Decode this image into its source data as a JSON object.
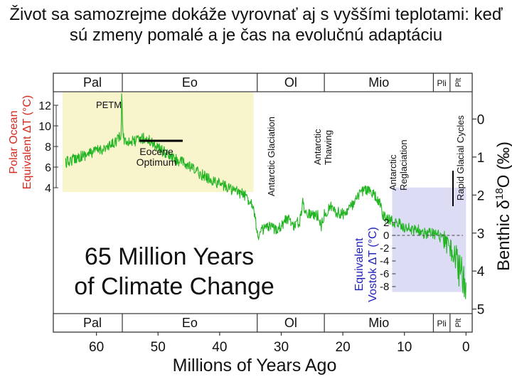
{
  "slide": {
    "title": "Život sa samozrejme dokáže vyrovnať aj s vyššími teplotami: keď sú zmeny pomalé a je čas na evolučnú adaptáciu"
  },
  "chart_data": {
    "type": "line",
    "title": "65 Million Years of Climate Change",
    "title_lines": [
      "65 Million Years",
      "of Climate Change"
    ],
    "xlabel": "Millions of Years Ago",
    "ylabel_right": "Benthic δ18O (‰)",
    "ylabel_right_parts": {
      "prefix": "Benthic δ",
      "superscript": "18",
      "suffix": "O (‰)"
    },
    "ylabel_left": [
      "Polar Ocean",
      "Equivalent ΔT (°C)"
    ],
    "ylabel_vostok": [
      "Equivalent",
      "Vostok ΔT (°C)"
    ],
    "xlim": [
      67,
      -1
    ],
    "ylim_right": [
      -0.7,
      5.1
    ],
    "x_ticks": [
      60,
      50,
      40,
      30,
      20,
      10,
      0
    ],
    "y_ticks_right": [
      0,
      1,
      2,
      3,
      4,
      5
    ],
    "y_ticks_left": [
      12,
      10,
      8,
      6,
      4
    ],
    "y_ticks_vostok": [
      2,
      0,
      -2,
      -4,
      -6,
      -8
    ],
    "colors": {
      "series": "#22b522",
      "polar_label": "#d42a1e",
      "polar_box": "#f8f4cc",
      "vostok_label": "#2222bb",
      "vostok_box": "#dcdcf4",
      "dashed": "#444444",
      "text": "#111111",
      "bar": "#000000"
    },
    "epochs": [
      {
        "label": "Pal",
        "start": 65.5,
        "end": 55.8
      },
      {
        "label": "Eo",
        "start": 55.8,
        "end": 33.9
      },
      {
        "label": "Ol",
        "start": 33.9,
        "end": 23.0
      },
      {
        "label": "Mio",
        "start": 23.0,
        "end": 5.3
      },
      {
        "label": "Pli",
        "start": 5.3,
        "end": 2.6
      },
      {
        "label": "Plt",
        "start": 2.6,
        "end": 0
      }
    ],
    "annotations": [
      {
        "text": "PETM",
        "x": 55.8,
        "y": -0.6
      },
      {
        "text": "Eocene Optimum",
        "lines": [
          "Eocene",
          "Optimum"
        ],
        "x_start": 53,
        "x_end": 46,
        "y": 1.15
      },
      {
        "text": "Antarctic Glaciation",
        "x": 33.7,
        "y_bottom": 2.6
      },
      {
        "text": "Antarctic Thawing",
        "x": 25.5,
        "y_bottom": 1.4
      },
      {
        "text": "Antarctic Reglaciation",
        "x": 13.5,
        "y_bottom": 1.9
      },
      {
        "text": "Rapid Glacial Cycles",
        "x": 0.8,
        "y_bottom": 2.5
      }
    ],
    "series": [
      {
        "name": "Benthic δ18O",
        "x": [
          65,
          63,
          61,
          59.5,
          58,
          57,
          56,
          55.9,
          55.7,
          55.5,
          54,
          52.5,
          51,
          50,
          48,
          46,
          44,
          42,
          40,
          38,
          36,
          34.5,
          34,
          33.6,
          33,
          32,
          31,
          30,
          29,
          28,
          27,
          26.5,
          26,
          25,
          24,
          23.5,
          23,
          22,
          21,
          20,
          19,
          18,
          17,
          16,
          15,
          14,
          13.5,
          13,
          12,
          11,
          10,
          9,
          8,
          7,
          6,
          5,
          4,
          3.5,
          3,
          2.5,
          2,
          1.5,
          1,
          0.5,
          0
        ],
        "y": [
          1.15,
          1.0,
          0.9,
          0.8,
          0.75,
          0.6,
          0.45,
          -0.6,
          0.3,
          0.55,
          0.6,
          0.5,
          0.6,
          0.75,
          1.0,
          1.15,
          1.35,
          1.55,
          1.7,
          1.85,
          2.0,
          2.25,
          2.9,
          3.1,
          2.9,
          2.85,
          2.9,
          2.8,
          2.6,
          2.8,
          2.7,
          2.2,
          2.45,
          2.5,
          2.55,
          2.8,
          2.5,
          2.3,
          2.45,
          2.5,
          2.35,
          2.2,
          1.9,
          1.85,
          2.0,
          2.2,
          2.55,
          2.6,
          2.7,
          2.75,
          2.85,
          2.9,
          2.9,
          3.0,
          3.0,
          3.05,
          3.05,
          3.2,
          3.3,
          3.45,
          3.5,
          3.75,
          4.0,
          4.2,
          4.3
        ],
        "scatter_range": [
          0.3,
          0.3,
          0.3,
          0.3,
          0.3,
          0.3,
          0.3,
          0.2,
          0.3,
          0.3,
          0.3,
          0.3,
          0.3,
          0.3,
          0.3,
          0.3,
          0.3,
          0.3,
          0.3,
          0.3,
          0.3,
          0.3,
          0.3,
          0.3,
          0.3,
          0.3,
          0.3,
          0.3,
          0.3,
          0.3,
          0.3,
          0.3,
          0.3,
          0.3,
          0.3,
          0.3,
          0.3,
          0.3,
          0.3,
          0.3,
          0.3,
          0.3,
          0.3,
          0.3,
          0.3,
          0.3,
          0.3,
          0.3,
          0.3,
          0.3,
          0.3,
          0.3,
          0.3,
          0.3,
          0.3,
          0.3,
          0.4,
          0.5,
          0.6,
          0.7,
          0.8,
          0.9,
          1.0,
          1.0,
          0.9
        ]
      }
    ]
  }
}
